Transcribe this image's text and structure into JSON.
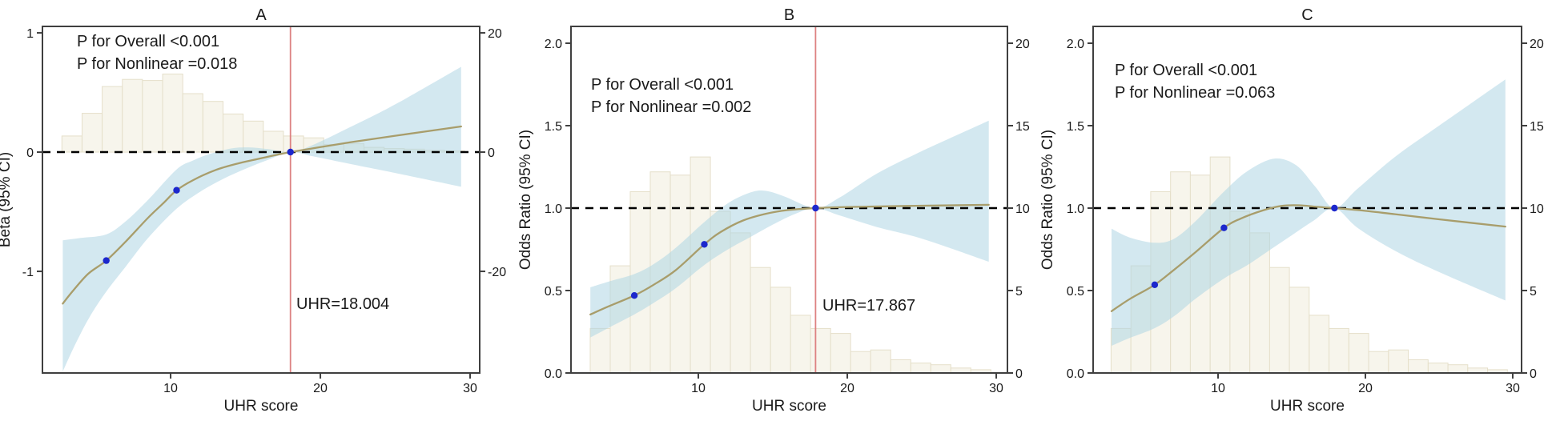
{
  "figure": {
    "background": "#ffffff",
    "x_axis_label": "UHR score",
    "colors": {
      "band": "#aed6e3",
      "curve": "#a89d6b",
      "histogram_fill": "#f7f5ec",
      "histogram_stroke": "#e5dfca",
      "reference_line": "#dd8181",
      "knot_dot": "#1c27cc",
      "null_line": "#000000",
      "border": "#3f3f3f",
      "text": "#1a1a1a"
    },
    "histogram": {
      "bin_start": 2.74,
      "bin_width": 1.345,
      "percent": [
        2.7,
        6.5,
        11.0,
        12.2,
        12.0,
        13.1,
        9.8,
        8.5,
        6.4,
        5.2,
        3.5,
        2.7,
        2.4,
        1.3,
        1.4,
        0.8,
        0.6,
        0.5,
        0.3,
        0.2
      ]
    }
  },
  "chart_data": [
    {
      "id": "A",
      "type": "line",
      "title": "A",
      "ylabel": "Beta (95% CI)",
      "xlabel": "UHR score",
      "p_overall": "P for Overall <0.001",
      "p_nonlinear": "P for Nonlinear =0.018",
      "x_range": [
        1.44,
        30.64
      ],
      "y_range": [
        -1.852,
        1.054
      ],
      "null_value": 0,
      "hist_base_value": 0,
      "hist_value_per_pct": 0.05,
      "x_ticks": [
        {
          "v": 10,
          "label": "10"
        },
        {
          "v": 20,
          "label": "20"
        },
        {
          "v": 30,
          "label": "30"
        }
      ],
      "y_ticks_left": [
        {
          "v": 1,
          "label": "1"
        },
        {
          "v": 0,
          "label": "0"
        },
        {
          "v": -1,
          "label": "-1"
        }
      ],
      "y_ticks_right": [
        {
          "v": 1,
          "label": "20"
        },
        {
          "v": 0,
          "label": "0"
        },
        {
          "v": -1,
          "label": "-20"
        }
      ],
      "ref_line": {
        "x": 18.004,
        "label": "UHR=18.004"
      },
      "knots": [
        [
          5.7,
          -0.91
        ],
        [
          10.4,
          -0.32
        ],
        [
          18.004,
          0.0
        ]
      ],
      "curve": [
        [
          2.8,
          -1.27
        ],
        [
          3.5,
          -1.16
        ],
        [
          4.5,
          -1.02
        ],
        [
          5.7,
          -0.91
        ],
        [
          7.0,
          -0.75
        ],
        [
          8.5,
          -0.55
        ],
        [
          9.5,
          -0.43
        ],
        [
          10.4,
          -0.32
        ],
        [
          11.5,
          -0.235
        ],
        [
          13,
          -0.15
        ],
        [
          14.5,
          -0.095
        ],
        [
          16,
          -0.053
        ],
        [
          17,
          -0.025
        ],
        [
          18.004,
          0.0
        ],
        [
          20,
          0.042
        ],
        [
          22,
          0.082
        ],
        [
          25,
          0.137
        ],
        [
          29.4,
          0.215
        ]
      ],
      "band_upper": [
        [
          2.8,
          -0.74
        ],
        [
          4,
          -0.72
        ],
        [
          5.7,
          -0.69
        ],
        [
          7,
          -0.58
        ],
        [
          8.5,
          -0.4
        ],
        [
          10.4,
          -0.145
        ],
        [
          11.5,
          -0.07
        ],
        [
          12.5,
          -0.02
        ],
        [
          14,
          0.03
        ],
        [
          15.2,
          0.04
        ],
        [
          16.5,
          0.025
        ],
        [
          18.004,
          0.0
        ],
        [
          19.5,
          0.06
        ],
        [
          22,
          0.21
        ],
        [
          25,
          0.4
        ],
        [
          29.4,
          0.715
        ]
      ],
      "band_lower": [
        [
          2.8,
          -1.84
        ],
        [
          3.6,
          -1.62
        ],
        [
          4.6,
          -1.38
        ],
        [
          5.7,
          -1.17
        ],
        [
          7,
          -0.96
        ],
        [
          8.5,
          -0.72
        ],
        [
          10.4,
          -0.475
        ],
        [
          12,
          -0.33
        ],
        [
          13.5,
          -0.225
        ],
        [
          15,
          -0.14
        ],
        [
          16.5,
          -0.065
        ],
        [
          18.004,
          0.0
        ],
        [
          19.5,
          -0.035
        ],
        [
          22,
          -0.1
        ],
        [
          25,
          -0.175
        ],
        [
          29.4,
          -0.29
        ]
      ]
    },
    {
      "id": "B",
      "type": "line",
      "title": "B",
      "ylabel": "Odds Ratio (95% CI)",
      "xlabel": "UHR score",
      "p_overall": "P for Overall <0.001",
      "p_nonlinear": "P for Nonlinear =0.002",
      "x_range": [
        1.45,
        30.75
      ],
      "y_range": [
        0,
        2.102
      ],
      "null_value": 1,
      "hist_base_value": 0,
      "hist_value_per_pct": 0.1,
      "x_ticks": [
        {
          "v": 10,
          "label": "10"
        },
        {
          "v": 20,
          "label": "20"
        },
        {
          "v": 30,
          "label": "30"
        }
      ],
      "y_ticks_left": [
        {
          "v": 2.0,
          "label": "2.0"
        },
        {
          "v": 1.5,
          "label": "1.5"
        },
        {
          "v": 1.0,
          "label": "1.0"
        },
        {
          "v": 0.5,
          "label": "0.5"
        },
        {
          "v": 0.0,
          "label": "0.0"
        }
      ],
      "y_ticks_right": [
        {
          "v": 2.0,
          "label": "20"
        },
        {
          "v": 1.5,
          "label": "15"
        },
        {
          "v": 1.0,
          "label": "10"
        },
        {
          "v": 0.5,
          "label": "5"
        },
        {
          "v": 0.0,
          "label": "0"
        }
      ],
      "ref_line": {
        "x": 17.867,
        "label": "UHR=17.867"
      },
      "knots": [
        [
          5.7,
          0.47
        ],
        [
          10.4,
          0.78
        ],
        [
          17.867,
          1.0
        ]
      ],
      "curve": [
        [
          2.75,
          0.355
        ],
        [
          4,
          0.405
        ],
        [
          5.7,
          0.47
        ],
        [
          7,
          0.535
        ],
        [
          8.5,
          0.625
        ],
        [
          10.4,
          0.78
        ],
        [
          11.5,
          0.855
        ],
        [
          13,
          0.925
        ],
        [
          14.5,
          0.965
        ],
        [
          16,
          0.988
        ],
        [
          17.867,
          1.0
        ],
        [
          20,
          1.007
        ],
        [
          24,
          1.013
        ],
        [
          29.5,
          1.02
        ]
      ],
      "band_upper": [
        [
          2.75,
          0.52
        ],
        [
          4,
          0.555
        ],
        [
          5.7,
          0.6
        ],
        [
          7,
          0.66
        ],
        [
          8.5,
          0.76
        ],
        [
          10.4,
          0.915
        ],
        [
          12,
          1.03
        ],
        [
          13.5,
          1.095
        ],
        [
          14.5,
          1.105
        ],
        [
          15.8,
          1.07
        ],
        [
          17.867,
          1.0
        ],
        [
          19.5,
          1.065
        ],
        [
          22,
          1.21
        ],
        [
          25,
          1.345
        ],
        [
          29.5,
          1.53
        ]
      ],
      "band_lower": [
        [
          2.75,
          0.215
        ],
        [
          4,
          0.275
        ],
        [
          5.7,
          0.355
        ],
        [
          7,
          0.425
        ],
        [
          8.5,
          0.515
        ],
        [
          10.4,
          0.655
        ],
        [
          12,
          0.75
        ],
        [
          13.5,
          0.825
        ],
        [
          15,
          0.9
        ],
        [
          16.5,
          0.965
        ],
        [
          17.867,
          1.0
        ],
        [
          19.5,
          0.955
        ],
        [
          22,
          0.885
        ],
        [
          25,
          0.815
        ],
        [
          29.5,
          0.675
        ]
      ]
    },
    {
      "id": "C",
      "type": "line",
      "title": "C",
      "ylabel": "Odds Ratio (95% CI)",
      "xlabel": "UHR score",
      "p_overall": "P for Overall <0.001",
      "p_nonlinear": "P for Nonlinear =0.063",
      "x_range": [
        1.52,
        30.6
      ],
      "y_range": [
        0,
        2.102
      ],
      "null_value": 1,
      "hist_base_value": 0,
      "hist_value_per_pct": 0.1,
      "x_ticks": [
        {
          "v": 10,
          "label": "10"
        },
        {
          "v": 20,
          "label": "20"
        },
        {
          "v": 30,
          "label": "30"
        }
      ],
      "y_ticks_left": [
        {
          "v": 2.0,
          "label": "2.0"
        },
        {
          "v": 1.5,
          "label": "1.5"
        },
        {
          "v": 1.0,
          "label": "1.0"
        },
        {
          "v": 0.5,
          "label": "0.5"
        },
        {
          "v": 0.0,
          "label": "0.0"
        }
      ],
      "y_ticks_right": [
        {
          "v": 2.0,
          "label": "20"
        },
        {
          "v": 1.5,
          "label": "15"
        },
        {
          "v": 1.0,
          "label": "10"
        },
        {
          "v": 0.5,
          "label": "5"
        },
        {
          "v": 0.0,
          "label": "0"
        }
      ],
      "ref_line": null,
      "knots": [
        [
          5.7,
          0.535
        ],
        [
          10.4,
          0.88
        ],
        [
          17.9,
          1.0
        ]
      ],
      "curve": [
        [
          2.77,
          0.375
        ],
        [
          4,
          0.448
        ],
        [
          5.7,
          0.535
        ],
        [
          7,
          0.625
        ],
        [
          8.5,
          0.735
        ],
        [
          10.4,
          0.88
        ],
        [
          11.5,
          0.935
        ],
        [
          13,
          0.985
        ],
        [
          14.3,
          1.013
        ],
        [
          15.5,
          1.017
        ],
        [
          16.7,
          1.008
        ],
        [
          17.9,
          1.0
        ],
        [
          19.5,
          0.988
        ],
        [
          22,
          0.963
        ],
        [
          25,
          0.932
        ],
        [
          29.5,
          0.888
        ]
      ],
      "band_upper": [
        [
          2.77,
          0.875
        ],
        [
          4,
          0.822
        ],
        [
          5.7,
          0.79
        ],
        [
          7,
          0.813
        ],
        [
          8.5,
          0.923
        ],
        [
          10.4,
          1.1
        ],
        [
          12,
          1.225
        ],
        [
          13.8,
          1.3
        ],
        [
          15.3,
          1.26
        ],
        [
          16.6,
          1.13
        ],
        [
          17.9,
          1.0
        ],
        [
          19.5,
          1.12
        ],
        [
          22,
          1.31
        ],
        [
          25,
          1.5
        ],
        [
          29.5,
          1.78
        ]
      ],
      "band_lower": [
        [
          2.77,
          0.165
        ],
        [
          4,
          0.212
        ],
        [
          5.7,
          0.272
        ],
        [
          7,
          0.343
        ],
        [
          8.5,
          0.452
        ],
        [
          10.4,
          0.573
        ],
        [
          12,
          0.655
        ],
        [
          13.5,
          0.745
        ],
        [
          15,
          0.835
        ],
        [
          16.5,
          0.925
        ],
        [
          17.9,
          1.0
        ],
        [
          19.5,
          0.878
        ],
        [
          22,
          0.742
        ],
        [
          25,
          0.612
        ],
        [
          29.5,
          0.44
        ]
      ]
    }
  ]
}
